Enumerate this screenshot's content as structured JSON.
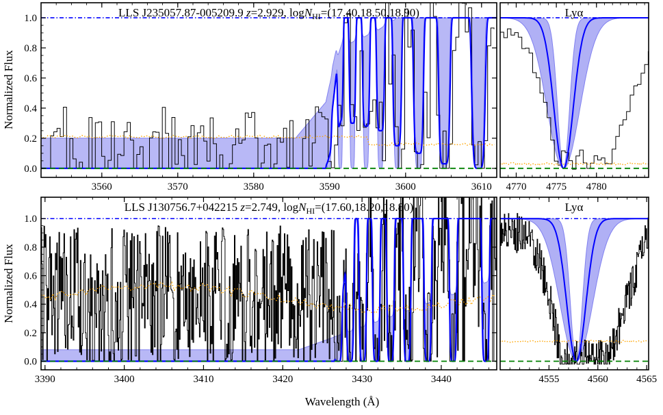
{
  "figure": {
    "ylabel": "Normalized Flux",
    "xlabel": "Wavelength (Å)"
  },
  "chart_data": [
    {
      "type": "line",
      "title": "LLS J235057.87-005209.9 z=2.929,  logN_HI=(17.40,18.50,18.90)",
      "title_parts": {
        "name": "LLS J235057.87-005209.9",
        "z": "2.929",
        "logN": "(17.40,18.50,18.90)"
      },
      "xlim": [
        3552,
        3612
      ],
      "ylim": [
        -0.06,
        1.1
      ],
      "xticks": [
        3560,
        3570,
        3580,
        3590,
        3600,
        3610
      ],
      "yticks": [
        0.0,
        0.2,
        0.4,
        0.6,
        0.8,
        1.0
      ],
      "lines_center": [
        3589.9,
        3591.4,
        3593.0,
        3594.8,
        3596.7,
        3598.9,
        3601.7,
        3605.1,
        3609.6
      ],
      "series": [
        {
          "role": "model",
          "color": "#0000ff",
          "edge": 3589.5,
          "base": 0.0,
          "depth": [
            0.4,
            0.35,
            0.3,
            0.28,
            0.25,
            0.15,
            0.1,
            0.03,
            0.0
          ],
          "width": [
            0.35,
            0.4,
            0.45,
            0.5,
            0.55,
            0.6,
            0.7,
            0.8,
            0.95
          ]
        },
        {
          "role": "uncertainty",
          "color": "#b0b0f5",
          "edge": 3585.5,
          "base_hi": 0.2,
          "upper_depth": [
            0.57,
            0.53,
            0.49,
            0.43,
            0.34,
            0.22,
            0.12,
            0.04,
            0.0
          ]
        },
        {
          "role": "continuum",
          "color": "#0000ff",
          "y": 1.0
        },
        {
          "role": "zero",
          "color": "#008000",
          "y": 0.0
        },
        {
          "role": "error",
          "color": "#ffa500",
          "y": 0.21
        }
      ]
    },
    {
      "type": "line",
      "title": "Lyα",
      "xlim": [
        4768,
        4786.5
      ],
      "ylim": [
        -0.06,
        1.1
      ],
      "xticks": [
        4770,
        4775,
        4780
      ],
      "series": [
        {
          "role": "model",
          "color": "#0000ff",
          "center": 4775.9,
          "sigma": 1.6
        },
        {
          "role": "uncertainty",
          "color": "#b0b0f5"
        },
        {
          "role": "continuum",
          "color": "#0000ff",
          "y": 1.0
        },
        {
          "role": "zero",
          "color": "#008000",
          "y": 0.0
        },
        {
          "role": "error",
          "color": "#ffa500",
          "y": 0.03
        }
      ]
    },
    {
      "type": "line",
      "title": "LLS J130756.7+042215 z=2.749,  logN_HI=(17.60,18.20,18.80)",
      "title_parts": {
        "name": "LLS J130756.7+042215",
        "z": "2.749",
        "logN": "(17.60,18.20,18.80)"
      },
      "xlim": [
        3389.5,
        3447
      ],
      "ylim": [
        -0.06,
        1.15
      ],
      "xticks": [
        3390,
        3400,
        3410,
        3420,
        3430,
        3440
      ],
      "yticks": [
        0.0,
        0.2,
        0.4,
        0.6,
        0.8,
        1.0
      ],
      "lines_center": [
        3427.0,
        3428.5,
        3430.1,
        3431.8,
        3433.6,
        3435.7,
        3438.3,
        3441.5,
        3445.6
      ],
      "series": [
        {
          "role": "model",
          "color": "#0000ff",
          "edge": 3426.5,
          "base": 0.0
        },
        {
          "role": "uncertainty",
          "color": "#b0b0f5",
          "edge": 3422.0,
          "base_hi": 0.08
        },
        {
          "role": "continuum",
          "color": "#0000ff",
          "y": 1.0
        },
        {
          "role": "zero",
          "color": "#008000",
          "y": 0.0
        },
        {
          "role": "error",
          "color": "#ffa500",
          "y": 0.45
        }
      ]
    },
    {
      "type": "line",
      "title": "Lyα",
      "xlim": [
        4550,
        4565.2
      ],
      "ylim": [
        -0.06,
        1.15
      ],
      "xticks": [
        4555,
        4560,
        4565
      ],
      "series": [
        {
          "role": "model",
          "color": "#0000ff",
          "center": 4557.8,
          "sigma": 1.3
        },
        {
          "role": "uncertainty",
          "color": "#b0b0f5"
        },
        {
          "role": "continuum",
          "color": "#0000ff",
          "y": 1.0
        },
        {
          "role": "zero",
          "color": "#008000",
          "y": 0.0
        },
        {
          "role": "error",
          "color": "#ffa500",
          "y": 0.14
        }
      ]
    }
  ]
}
